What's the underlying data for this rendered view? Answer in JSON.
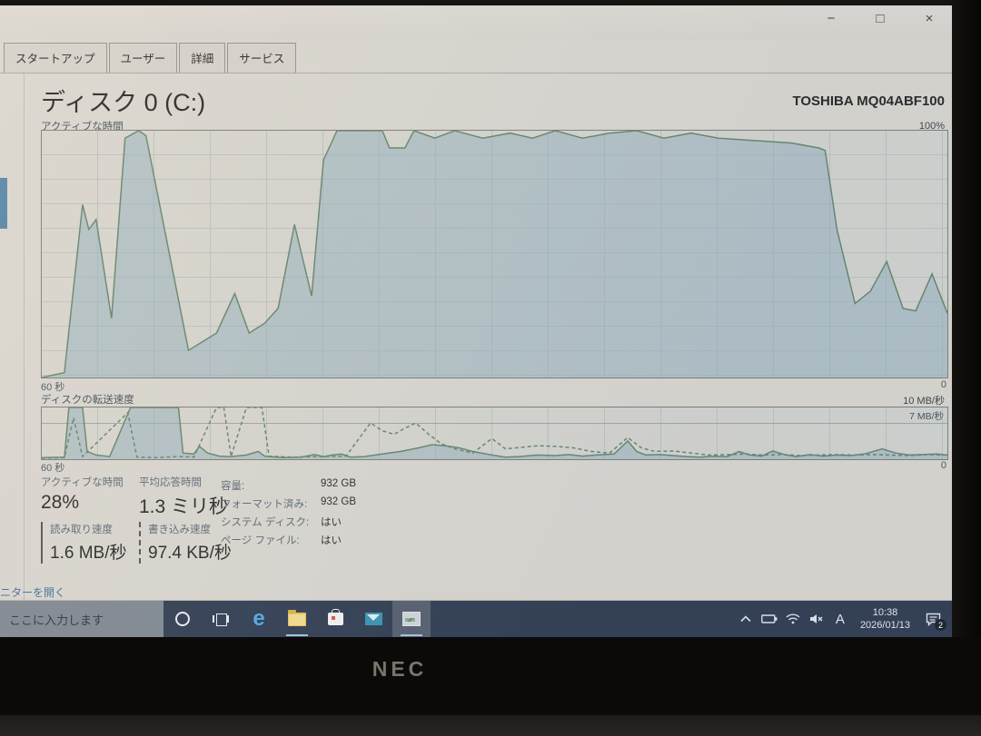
{
  "window": {
    "controls": {
      "minimize": "−",
      "maximize": "□",
      "close": "×"
    }
  },
  "tabs": [
    "スタートアップ",
    "ユーザー",
    "詳細",
    "サービス"
  ],
  "disk_page": {
    "title": "ディスク 0 (C:)",
    "device_model": "TOSHIBA MQ04ABF100"
  },
  "chart_data": [
    {
      "type": "area",
      "title": "アクティブな時間",
      "ymax_label": "100%",
      "xlabel_left": "60 秒",
      "xlabel_right": "0",
      "ylim": [
        0,
        100
      ],
      "grid": true,
      "series": [
        {
          "name": "active-time",
          "style": "solid",
          "fill": true,
          "points": [
            [
              0,
              0
            ],
            [
              0.025,
              2
            ],
            [
              0.045,
              70
            ],
            [
              0.052,
              60
            ],
            [
              0.06,
              64
            ],
            [
              0.077,
              24
            ],
            [
              0.092,
              97
            ],
            [
              0.107,
              100
            ],
            [
              0.115,
              98
            ],
            [
              0.162,
              11
            ],
            [
              0.193,
              18
            ],
            [
              0.213,
              34
            ],
            [
              0.229,
              18
            ],
            [
              0.246,
              22
            ],
            [
              0.261,
              28
            ],
            [
              0.279,
              62
            ],
            [
              0.298,
              33
            ],
            [
              0.311,
              88
            ],
            [
              0.326,
              100
            ],
            [
              0.376,
              100
            ],
            [
              0.384,
              93
            ],
            [
              0.401,
              93
            ],
            [
              0.411,
              100
            ],
            [
              0.434,
              97
            ],
            [
              0.456,
              100
            ],
            [
              0.487,
              97
            ],
            [
              0.517,
              99
            ],
            [
              0.542,
              97
            ],
            [
              0.567,
              100
            ],
            [
              0.597,
              97
            ],
            [
              0.627,
              99
            ],
            [
              0.657,
              100
            ],
            [
              0.687,
              97
            ],
            [
              0.717,
              99
            ],
            [
              0.747,
              97
            ],
            [
              0.787,
              96
            ],
            [
              0.828,
              95
            ],
            [
              0.858,
              93
            ],
            [
              0.865,
              92
            ],
            [
              0.878,
              60
            ],
            [
              0.898,
              30
            ],
            [
              0.915,
              35
            ],
            [
              0.933,
              47
            ],
            [
              0.951,
              28
            ],
            [
              0.965,
              27
            ],
            [
              0.983,
              42
            ],
            [
              1,
              26
            ]
          ]
        }
      ]
    },
    {
      "type": "area",
      "title": "ディスクの転送速度",
      "ymax_label": "10 MB/秒",
      "inner_scale_label": "7 MB/秒",
      "xlabel_left": "60 秒",
      "xlabel_right": "0",
      "ylim": [
        0,
        10
      ],
      "grid": true,
      "series": [
        {
          "name": "read-speed",
          "style": "solid",
          "fill": true,
          "points": [
            [
              0,
              0.3
            ],
            [
              0.025,
              0.4
            ],
            [
              0.03,
              10
            ],
            [
              0.045,
              10
            ],
            [
              0.05,
              1.5
            ],
            [
              0.06,
              0.8
            ],
            [
              0.075,
              0.5
            ],
            [
              0.098,
              10
            ],
            [
              0.151,
              10
            ],
            [
              0.156,
              1.2
            ],
            [
              0.168,
              1
            ],
            [
              0.174,
              2.5
            ],
            [
              0.183,
              1.2
            ],
            [
              0.196,
              0.6
            ],
            [
              0.209,
              0.5
            ],
            [
              0.226,
              0.8
            ],
            [
              0.239,
              1.5
            ],
            [
              0.246,
              0.6
            ],
            [
              0.266,
              0.3
            ],
            [
              0.286,
              0.4
            ],
            [
              0.301,
              0.9
            ],
            [
              0.311,
              0.5
            ],
            [
              0.321,
              0.8
            ],
            [
              0.331,
              1
            ],
            [
              0.341,
              0.4
            ],
            [
              0.356,
              0.5
            ],
            [
              0.376,
              1
            ],
            [
              0.396,
              1.5
            ],
            [
              0.416,
              2.2
            ],
            [
              0.431,
              2.8
            ],
            [
              0.446,
              2.6
            ],
            [
              0.461,
              2.2
            ],
            [
              0.476,
              1.5
            ],
            [
              0.497,
              0.8
            ],
            [
              0.512,
              0.4
            ],
            [
              0.527,
              0.5
            ],
            [
              0.547,
              0.8
            ],
            [
              0.567,
              0.7
            ],
            [
              0.582,
              0.9
            ],
            [
              0.597,
              0.6
            ],
            [
              0.612,
              0.8
            ],
            [
              0.632,
              1
            ],
            [
              0.647,
              3.5
            ],
            [
              0.657,
              1.5
            ],
            [
              0.667,
              0.8
            ],
            [
              0.682,
              0.9
            ],
            [
              0.697,
              0.7
            ],
            [
              0.712,
              0.5
            ],
            [
              0.727,
              0.4
            ],
            [
              0.742,
              0.6
            ],
            [
              0.757,
              0.5
            ],
            [
              0.77,
              1.5
            ],
            [
              0.782,
              0.8
            ],
            [
              0.795,
              0.6
            ],
            [
              0.807,
              1.6
            ],
            [
              0.82,
              0.9
            ],
            [
              0.833,
              0.5
            ],
            [
              0.848,
              0.9
            ],
            [
              0.863,
              0.6
            ],
            [
              0.878,
              0.8
            ],
            [
              0.893,
              0.7
            ],
            [
              0.908,
              1
            ],
            [
              0.928,
              2
            ],
            [
              0.943,
              1.2
            ],
            [
              0.958,
              0.8
            ],
            [
              0.973,
              0.9
            ],
            [
              0.988,
              1
            ],
            [
              1,
              0.8
            ]
          ]
        },
        {
          "name": "write-speed",
          "style": "dashed",
          "fill": false,
          "points": [
            [
              0,
              0.2
            ],
            [
              0.025,
              0.3
            ],
            [
              0.035,
              8
            ],
            [
              0.045,
              0.5
            ],
            [
              0.095,
              9
            ],
            [
              0.105,
              0.4
            ],
            [
              0.125,
              0.3
            ],
            [
              0.15,
              0.5
            ],
            [
              0.168,
              0.4
            ],
            [
              0.193,
              10
            ],
            [
              0.201,
              10
            ],
            [
              0.209,
              0.5
            ],
            [
              0.226,
              10
            ],
            [
              0.243,
              10
            ],
            [
              0.251,
              0.6
            ],
            [
              0.276,
              0.4
            ],
            [
              0.306,
              0.5
            ],
            [
              0.336,
              0.6
            ],
            [
              0.363,
              7
            ],
            [
              0.376,
              5.5
            ],
            [
              0.389,
              4.8
            ],
            [
              0.401,
              6
            ],
            [
              0.413,
              7
            ],
            [
              0.426,
              5
            ],
            [
              0.441,
              3
            ],
            [
              0.456,
              2
            ],
            [
              0.476,
              1.2
            ],
            [
              0.497,
              4
            ],
            [
              0.512,
              2
            ],
            [
              0.53,
              2.3
            ],
            [
              0.547,
              2.6
            ],
            [
              0.567,
              2.5
            ],
            [
              0.587,
              2.2
            ],
            [
              0.607,
              1.5
            ],
            [
              0.627,
              1.2
            ],
            [
              0.647,
              4.2
            ],
            [
              0.662,
              2.2
            ],
            [
              0.677,
              1.5
            ],
            [
              0.697,
              1.6
            ],
            [
              0.717,
              1.2
            ],
            [
              0.737,
              0.8
            ],
            [
              0.757,
              0.9
            ],
            [
              0.777,
              1
            ],
            [
              0.797,
              0.8
            ],
            [
              0.817,
              0.9
            ],
            [
              0.837,
              0.7
            ],
            [
              0.857,
              0.8
            ],
            [
              0.877,
              0.9
            ],
            [
              0.897,
              0.8
            ],
            [
              0.917,
              0.9
            ],
            [
              0.937,
              0.8
            ],
            [
              0.957,
              0.7
            ],
            [
              0.977,
              0.9
            ],
            [
              1,
              0.8
            ]
          ]
        }
      ]
    }
  ],
  "stats": {
    "active_time": {
      "label": "アクティブな時間",
      "value": "28%"
    },
    "avg_response": {
      "label": "平均応答時間",
      "value": "1.3 ミリ秒"
    },
    "read_speed": {
      "label": "読み取り速度",
      "value": "1.6 MB/秒"
    },
    "write_speed": {
      "label": "書き込み速度",
      "value": "97.4 KB/秒"
    },
    "details": [
      {
        "label": "容量:",
        "value": "932 GB"
      },
      {
        "label": "フォーマット済み:",
        "value": "932 GB"
      },
      {
        "label": "システム ディスク:",
        "value": "はい"
      },
      {
        "label": "ページ ファイル:",
        "value": "はい"
      }
    ]
  },
  "footer_link": "ニターを開く",
  "taskbar": {
    "search_text": "ここに入力します",
    "tray": {
      "ime": "A",
      "time": "10:38",
      "date": "2026/01/13",
      "notif_badge": "2"
    }
  },
  "bezel": {
    "brand": "NEC"
  },
  "colors": {
    "taskbar_bg": "#273349",
    "screen_bg": "#d8d4cd",
    "chart_fill": "rgba(139,170,186,0.5)",
    "chart_line": "#5e8066",
    "sidebar_thumb": "#4c7fa3"
  }
}
